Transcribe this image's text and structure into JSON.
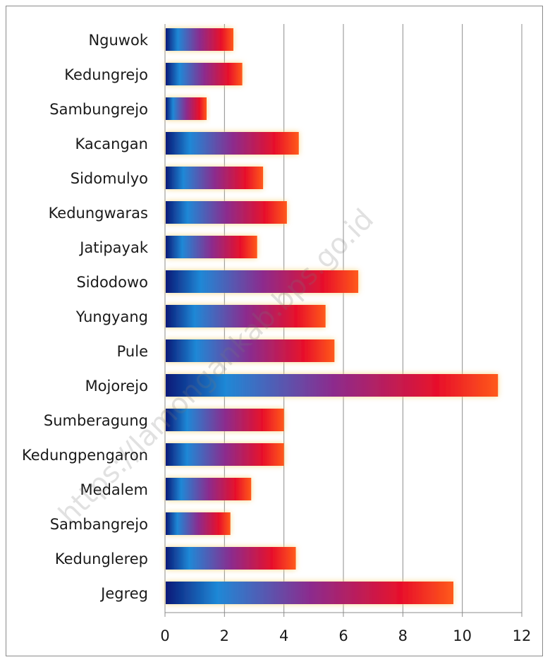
{
  "chart_data": {
    "type": "bar",
    "orientation": "horizontal",
    "title": "",
    "xlabel": "",
    "ylabel": "",
    "categories": [
      "Nguwok",
      "Kedungrejo",
      "Sambungrejo",
      "Kacangan",
      "Sidomulyo",
      "Kedungwaras",
      "Jatipayak",
      "Sidodowo",
      "Yungyang",
      "Pule",
      "Mojorejo",
      "Sumberagung",
      "Kedungpengaron",
      "Medalem",
      "Sambangrejo",
      "Kedunglerep",
      "Jegreg"
    ],
    "values": [
      2.3,
      2.6,
      1.4,
      4.5,
      3.3,
      4.1,
      3.1,
      6.5,
      5.4,
      5.7,
      11.2,
      4.0,
      4.0,
      2.9,
      2.2,
      4.4,
      9.7
    ],
    "xlim": [
      0,
      12
    ],
    "xticks": [
      0,
      2,
      4,
      6,
      8,
      10,
      12
    ],
    "grid": true,
    "legend": "none",
    "bar_gradient": [
      "#0a1a78",
      "#1f88d6",
      "#8b2c8e",
      "#e8102a",
      "#ff5a1a"
    ],
    "watermark": "https://lamongankab.bps.go.id"
  }
}
